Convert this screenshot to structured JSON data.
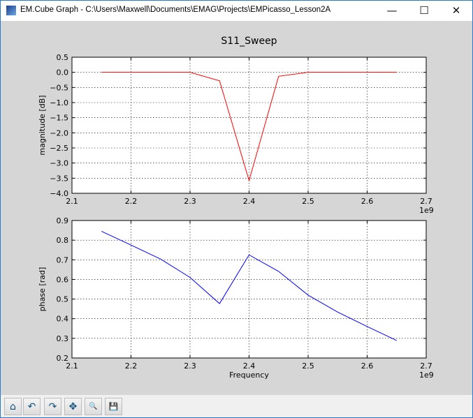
{
  "window": {
    "title": "EM.Cube Graph - C:\\Users\\Maxwell\\Documents\\EMAG\\Projects\\EMPicasso_Lesson2A",
    "minimize": "—",
    "maximize": "☐",
    "close": "✕"
  },
  "toolbar": {
    "buttons": [
      {
        "name": "home-button",
        "icon": "home-icon",
        "glyph": "⌂"
      },
      {
        "name": "back-button",
        "icon": "back-icon",
        "glyph": "↶"
      },
      {
        "name": "forward-button",
        "icon": "forward-icon",
        "glyph": "↷"
      },
      {
        "name": "pan-button",
        "icon": "move-icon",
        "glyph": "✥"
      },
      {
        "name": "zoom-button",
        "icon": "zoom-icon",
        "glyph": "🔍"
      },
      {
        "name": "save-button",
        "icon": "save-icon",
        "glyph": "💾"
      }
    ]
  },
  "chart_data": [
    {
      "type": "line",
      "title": "S11_Sweep",
      "xlabel": "",
      "ylabel": "magnitude [dB]",
      "x_offset_label": "1e9",
      "xlim": [
        2.1,
        2.7
      ],
      "ylim": [
        -4.0,
        0.5
      ],
      "xticks": [
        "2.1",
        "2.2",
        "2.3",
        "2.4",
        "2.5",
        "2.6",
        "2.7"
      ],
      "yticks": [
        "0.5",
        "0.0",
        "−0.5",
        "−1.0",
        "−1.5",
        "−2.0",
        "−2.5",
        "−3.0",
        "−3.5",
        "−4.0"
      ],
      "grid": true,
      "color": "#ff0000",
      "x": [
        2.15,
        2.2,
        2.25,
        2.3,
        2.35,
        2.4,
        2.45,
        2.5,
        2.55,
        2.6,
        2.65
      ],
      "y": [
        0.0,
        0.0,
        0.0,
        0.0,
        -0.28,
        -3.58,
        -0.13,
        0.0,
        0.0,
        0.0,
        0.0
      ]
    },
    {
      "type": "line",
      "title": "",
      "xlabel": "Frequency",
      "ylabel": "phase [rad]",
      "x_offset_label": "1e9",
      "xlim": [
        2.1,
        2.7
      ],
      "ylim": [
        0.2,
        0.9
      ],
      "xticks": [
        "2.1",
        "2.2",
        "2.3",
        "2.4",
        "2.5",
        "2.6",
        "2.7"
      ],
      "yticks": [
        "0.9",
        "0.8",
        "0.7",
        "0.6",
        "0.5",
        "0.4",
        "0.3",
        "0.2"
      ],
      "grid": true,
      "color": "#0000ff",
      "x": [
        2.15,
        2.2,
        2.25,
        2.3,
        2.35,
        2.4,
        2.45,
        2.5,
        2.55,
        2.6,
        2.65
      ],
      "y": [
        0.845,
        0.775,
        0.704,
        0.61,
        0.477,
        0.725,
        0.641,
        0.52,
        0.434,
        0.36,
        0.289
      ]
    }
  ]
}
